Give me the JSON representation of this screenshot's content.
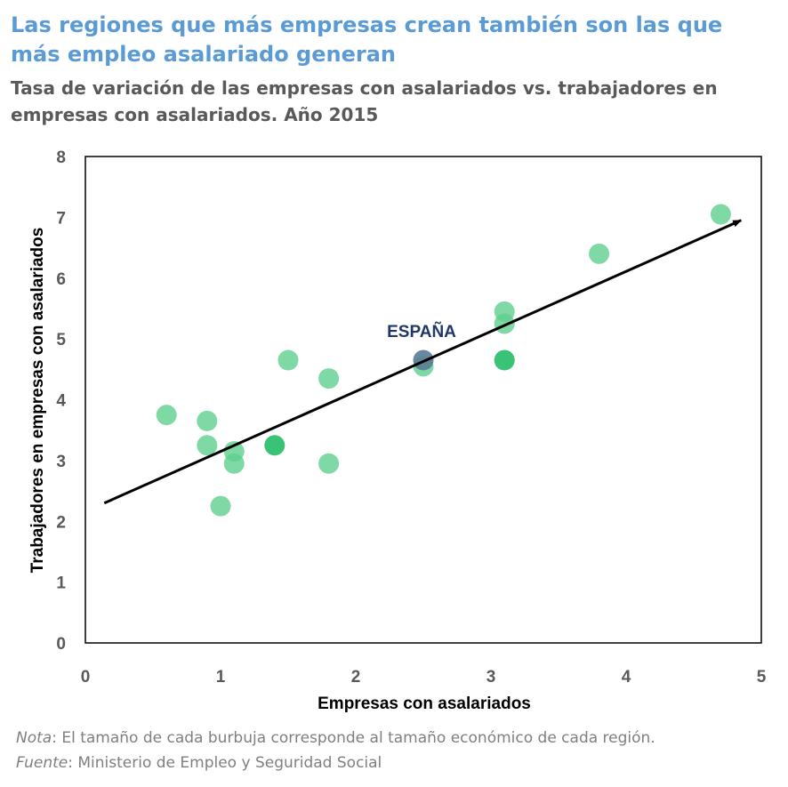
{
  "header": {
    "title": "Las regiones que más empresas crean también son las que más empleo asalariado generan",
    "subtitle": "Tasa de variación de las empresas con asalariados vs. trabajadores en empresas con asalariados. Año 2015"
  },
  "chart_data": {
    "type": "scatter",
    "xlabel": "Empresas con asalariados",
    "ylabel": "Trabajadores en empresas con asalariados",
    "xlim": [
      0,
      5
    ],
    "ylim": [
      0,
      8
    ],
    "xticks": [
      "0",
      "1",
      "2",
      "3",
      "4",
      "5"
    ],
    "yticks": [
      "0",
      "1",
      "2",
      "3",
      "4",
      "5",
      "6",
      "7",
      "8"
    ],
    "grid": false,
    "colors": {
      "points": "#5fcf8f",
      "points_dark": "#2fbf6f",
      "spain": "#5a7a96",
      "arrow": "#000000",
      "annotation": "#1f3864"
    },
    "points": [
      {
        "x": 0.6,
        "y": 3.75
      },
      {
        "x": 0.9,
        "y": 3.65
      },
      {
        "x": 0.9,
        "y": 3.25
      },
      {
        "x": 1.0,
        "y": 2.25
      },
      {
        "x": 1.1,
        "y": 3.15
      },
      {
        "x": 1.1,
        "y": 2.95
      },
      {
        "x": 1.4,
        "y": 3.25,
        "dark": true
      },
      {
        "x": 1.5,
        "y": 4.65
      },
      {
        "x": 1.8,
        "y": 4.35
      },
      {
        "x": 1.8,
        "y": 2.95
      },
      {
        "x": 2.5,
        "y": 4.55
      },
      {
        "x": 3.1,
        "y": 5.45
      },
      {
        "x": 3.1,
        "y": 5.25
      },
      {
        "x": 3.1,
        "y": 4.65,
        "dark": true
      },
      {
        "x": 3.8,
        "y": 6.4
      },
      {
        "x": 4.7,
        "y": 7.05
      }
    ],
    "highlight": {
      "label": "ESPAÑA",
      "x": 2.5,
      "y": 4.65
    },
    "trend_arrow": {
      "from": [
        0.14,
        2.3
      ],
      "to": [
        4.85,
        6.95
      ]
    }
  },
  "notes": {
    "nota_label": "Nota",
    "nota_text": ": El tamaño de cada burbuja corresponde al tamaño económico de cada región.",
    "fuente_label": "Fuente",
    "fuente_text": ": Ministerio de Empleo y Seguridad Social"
  }
}
